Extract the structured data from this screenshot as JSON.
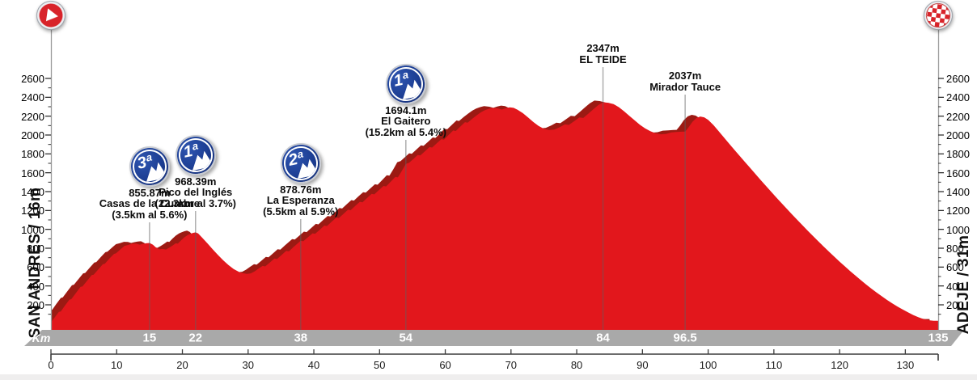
{
  "chart_data": {
    "type": "area",
    "title": "",
    "x_unit": "km",
    "y_unit": "m",
    "xlim": [
      0,
      135
    ],
    "ylim": [
      0,
      2600
    ],
    "grid": false,
    "start_label": "SAN ANDRES / 16m",
    "finish_label": "ADEJE / 31m",
    "km_band_label": "Km",
    "y_ticks": [
      200,
      400,
      600,
      800,
      1000,
      1200,
      1400,
      1600,
      1800,
      2000,
      2200,
      2400,
      2600
    ],
    "x_ticks": [
      0,
      10,
      20,
      30,
      40,
      50,
      60,
      70,
      80,
      90,
      100,
      110,
      120,
      130
    ],
    "km_markers": [
      {
        "km": 15,
        "label": "15"
      },
      {
        "km": 22,
        "label": "22"
      },
      {
        "km": 38,
        "label": "38"
      },
      {
        "km": 54,
        "label": "54"
      },
      {
        "km": 84,
        "label": "84"
      },
      {
        "km": 96.5,
        "label": "96.5"
      },
      {
        "km": 135,
        "label": "135"
      }
    ],
    "climbs": [
      {
        "km": 15,
        "category": "3ª",
        "elevation": "855.87m",
        "name": "Casas de la Cumbre",
        "detail": "(3.5km al 5.6%)"
      },
      {
        "km": 22,
        "category": "1ª",
        "elevation": "968.39m",
        "name": "Pico del Inglés",
        "detail": "(22.3km al 3.7%)"
      },
      {
        "km": 38,
        "category": "2ª",
        "elevation": "878.76m",
        "name": "La Esperanza",
        "detail": "(5.5km al 5.9%)"
      },
      {
        "km": 54,
        "category": "1ª",
        "elevation": "1694.1m",
        "name": "El Gaitero",
        "detail": "(15.2km al 5.4%)"
      },
      {
        "km": 84,
        "category": null,
        "elevation": "2347m",
        "name": "EL TEIDE",
        "detail": null
      },
      {
        "km": 96.5,
        "category": null,
        "elevation": "2037m",
        "name": "Mirador Tauce",
        "detail": null
      }
    ],
    "profile": [
      [
        0,
        16
      ],
      [
        0.6,
        70
      ],
      [
        1.2,
        125
      ],
      [
        1.5,
        130
      ],
      [
        2.1,
        190
      ],
      [
        2.8,
        255
      ],
      [
        3.1,
        260
      ],
      [
        3.8,
        325
      ],
      [
        4.5,
        390
      ],
      [
        4.8,
        395
      ],
      [
        5.5,
        455
      ],
      [
        6.2,
        515
      ],
      [
        6.5,
        520
      ],
      [
        7.2,
        575
      ],
      [
        7.9,
        630
      ],
      [
        8.2,
        635
      ],
      [
        8.9,
        690
      ],
      [
        9.6,
        740
      ],
      [
        9.9,
        745
      ],
      [
        10.6,
        790
      ],
      [
        11.2,
        825
      ],
      [
        11.8,
        835
      ],
      [
        12.4,
        850
      ],
      [
        13,
        848
      ],
      [
        13.5,
        838
      ],
      [
        14,
        846
      ],
      [
        14.5,
        852
      ],
      [
        15,
        856
      ],
      [
        15.5,
        838
      ],
      [
        16,
        806
      ],
      [
        16.5,
        788
      ],
      [
        17,
        792
      ],
      [
        17.5,
        786
      ],
      [
        18,
        806
      ],
      [
        18.5,
        828
      ],
      [
        19,
        852
      ],
      [
        19.3,
        848
      ],
      [
        19.8,
        884
      ],
      [
        20.3,
        916
      ],
      [
        20.8,
        940
      ],
      [
        21.2,
        952
      ],
      [
        21.6,
        962
      ],
      [
        22,
        968
      ],
      [
        22.4,
        956
      ],
      [
        23,
        912
      ],
      [
        23.8,
        852
      ],
      [
        24.6,
        790
      ],
      [
        25.4,
        730
      ],
      [
        26.2,
        672
      ],
      [
        27,
        622
      ],
      [
        27.8,
        580
      ],
      [
        28.6,
        550
      ],
      [
        29.2,
        535
      ],
      [
        29.8,
        528
      ],
      [
        30.4,
        533
      ],
      [
        31,
        555
      ],
      [
        31.6,
        585
      ],
      [
        32.2,
        612
      ],
      [
        32.6,
        607
      ],
      [
        33.3,
        648
      ],
      [
        34,
        690
      ],
      [
        34.4,
        685
      ],
      [
        35.1,
        728
      ],
      [
        35.8,
        772
      ],
      [
        36.2,
        767
      ],
      [
        36.9,
        812
      ],
      [
        37.5,
        848
      ],
      [
        38,
        879
      ],
      [
        38.4,
        874
      ],
      [
        39.1,
        916
      ],
      [
        39.8,
        958
      ],
      [
        40.2,
        953
      ],
      [
        40.9,
        996
      ],
      [
        41.6,
        1040
      ],
      [
        42,
        1035
      ],
      [
        42.7,
        1080
      ],
      [
        43.4,
        1124
      ],
      [
        43.8,
        1119
      ],
      [
        44.5,
        1163
      ],
      [
        45.2,
        1208
      ],
      [
        45.6,
        1203
      ],
      [
        46.3,
        1248
      ],
      [
        47,
        1292
      ],
      [
        47.4,
        1287
      ],
      [
        48.1,
        1332
      ],
      [
        48.8,
        1376
      ],
      [
        49.2,
        1371
      ],
      [
        49.9,
        1416
      ],
      [
        50.6,
        1460
      ],
      [
        51,
        1455
      ],
      [
        51.7,
        1505
      ],
      [
        52.4,
        1556
      ],
      [
        52.8,
        1551
      ],
      [
        53.4,
        1620
      ],
      [
        54,
        1694
      ],
      [
        54.5,
        1706
      ],
      [
        55.2,
        1750
      ],
      [
        55.8,
        1788
      ],
      [
        56.2,
        1783
      ],
      [
        56.9,
        1828
      ],
      [
        57.6,
        1872
      ],
      [
        58,
        1867
      ],
      [
        58.7,
        1912
      ],
      [
        59.4,
        1956
      ],
      [
        59.8,
        1951
      ],
      [
        60.5,
        2000
      ],
      [
        61.2,
        2048
      ],
      [
        61.6,
        2043
      ],
      [
        62.3,
        2090
      ],
      [
        63,
        2136
      ],
      [
        63.4,
        2131
      ],
      [
        64.1,
        2172
      ],
      [
        64.8,
        2210
      ],
      [
        65.4,
        2240
      ],
      [
        66,
        2262
      ],
      [
        66.6,
        2278
      ],
      [
        67.2,
        2288
      ],
      [
        68,
        2282
      ],
      [
        68.6,
        2270
      ],
      [
        69.2,
        2284
      ],
      [
        69.8,
        2294
      ],
      [
        70.4,
        2288
      ],
      [
        71,
        2268
      ],
      [
        71.8,
        2232
      ],
      [
        72.6,
        2186
      ],
      [
        73.4,
        2138
      ],
      [
        74.2,
        2096
      ],
      [
        75,
        2066
      ],
      [
        75.8,
        2052
      ],
      [
        76.6,
        2058
      ],
      [
        77.4,
        2082
      ],
      [
        78.2,
        2112
      ],
      [
        78.8,
        2107
      ],
      [
        79.6,
        2146
      ],
      [
        80.4,
        2186
      ],
      [
        81,
        2181
      ],
      [
        81.8,
        2228
      ],
      [
        82.6,
        2278
      ],
      [
        83.3,
        2318
      ],
      [
        84,
        2347
      ],
      [
        84.8,
        2342
      ],
      [
        85.6,
        2328
      ],
      [
        86.4,
        2296
      ],
      [
        87.2,
        2252
      ],
      [
        88,
        2204
      ],
      [
        88.8,
        2156
      ],
      [
        89.6,
        2110
      ],
      [
        90.4,
        2070
      ],
      [
        91.2,
        2040
      ],
      [
        92,
        2018
      ],
      [
        92.8,
        2008
      ],
      [
        93.6,
        2012
      ],
      [
        94.4,
        2028
      ],
      [
        95.2,
        2032
      ],
      [
        96,
        2035
      ],
      [
        96.5,
        2037
      ],
      [
        97,
        2080
      ],
      [
        97.6,
        2140
      ],
      [
        98.2,
        2180
      ],
      [
        98.8,
        2196
      ],
      [
        99.4,
        2188
      ],
      [
        100,
        2160
      ],
      [
        100.8,
        2106
      ],
      [
        101.6,
        2040
      ],
      [
        102.4,
        1974
      ],
      [
        103.2,
        1908
      ],
      [
        104,
        1842
      ],
      [
        104.8,
        1778
      ],
      [
        105.6,
        1714
      ],
      [
        106.4,
        1650
      ],
      [
        107.2,
        1586
      ],
      [
        108,
        1522
      ],
      [
        108.8,
        1460
      ],
      [
        109.6,
        1398
      ],
      [
        110.4,
        1336
      ],
      [
        111.2,
        1276
      ],
      [
        112,
        1216
      ],
      [
        112.8,
        1156
      ],
      [
        113.6,
        1098
      ],
      [
        114.4,
        1040
      ],
      [
        115.2,
        982
      ],
      [
        116,
        926
      ],
      [
        116.8,
        870
      ],
      [
        117.6,
        816
      ],
      [
        118.4,
        762
      ],
      [
        119.2,
        710
      ],
      [
        120,
        658
      ],
      [
        120.8,
        608
      ],
      [
        121.6,
        558
      ],
      [
        122.4,
        510
      ],
      [
        123.2,
        464
      ],
      [
        124,
        418
      ],
      [
        124.8,
        374
      ],
      [
        125.6,
        332
      ],
      [
        126.4,
        292
      ],
      [
        127.2,
        252
      ],
      [
        128,
        216
      ],
      [
        128.8,
        182
      ],
      [
        129.6,
        150
      ],
      [
        130.4,
        120
      ],
      [
        131.2,
        92
      ],
      [
        132,
        68
      ],
      [
        132.8,
        48
      ],
      [
        133.6,
        36
      ],
      [
        134.3,
        31
      ],
      [
        135,
        31
      ]
    ]
  },
  "colors": {
    "profile_red": "#e2171c",
    "profile_shadow": "#9c1a13",
    "badge_blue": "#1c3d92",
    "band_gray": "#a9a9a9",
    "marker_red": "#d8232a",
    "axis_gray": "#9b9b9b"
  },
  "icons": {
    "start": "play-circle",
    "finish": "checkered-circle"
  }
}
